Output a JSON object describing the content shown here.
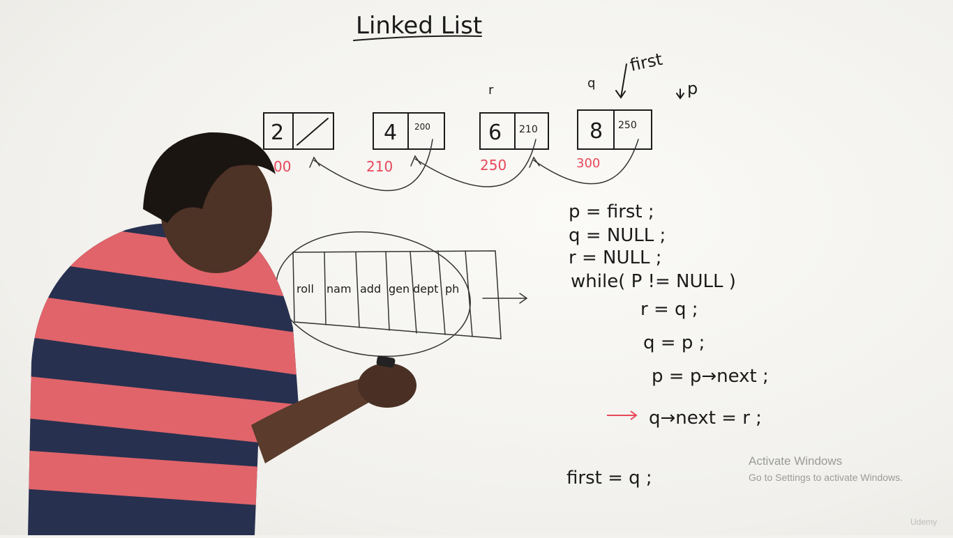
{
  "board": {
    "title": "Linked List",
    "nodes": [
      {
        "data": "2",
        "next": "",
        "address": "00"
      },
      {
        "data": "4",
        "next": "200",
        "address": "210"
      },
      {
        "data": "6",
        "next": "210",
        "address": "250"
      },
      {
        "data": "8",
        "next": "250",
        "address": "300"
      }
    ],
    "pointer_labels": {
      "r": "r",
      "q": "q",
      "first": "first",
      "p": "p"
    },
    "record_fields": [
      "roll",
      "nam",
      "add",
      "gen",
      "dept",
      "ph"
    ],
    "code": [
      "p = first ;",
      "q = NULL ;",
      "r = NULL ;",
      "while( P != NULL )",
      "r = q ;",
      "q = p ;",
      "p = p→next ;",
      "q→next = r ;",
      "first = q ;"
    ],
    "colors": {
      "ink": "#1b1b1b",
      "red_ink": "#e8475a",
      "shirt_red": "#e0646a",
      "shirt_navy": "#27304f"
    }
  },
  "watermark": {
    "title": "Activate Windows",
    "subtitle": "Go to Settings to activate Windows."
  },
  "brand_mark": "Udemy"
}
